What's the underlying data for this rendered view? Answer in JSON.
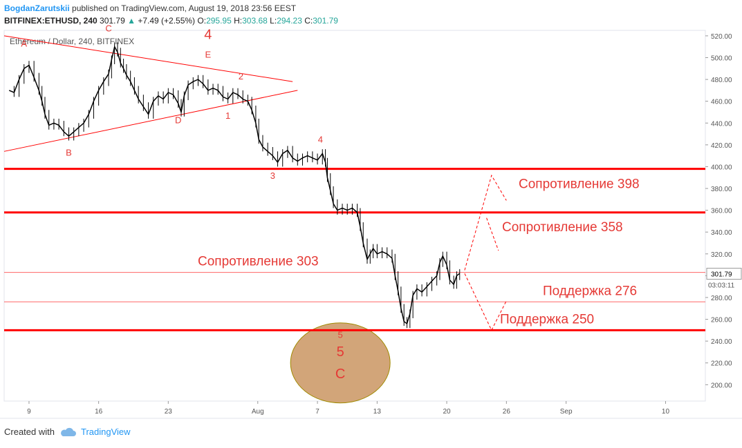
{
  "header": {
    "author": "BogdanZarutskii",
    "published": "published on TradingView.com, August 19, 2018 23:56 EEST",
    "symbol": "BITFINEX:ETHUSD, 240",
    "last": "301.79",
    "change": "+7.49 (+2.55%)",
    "open_label": "O:",
    "open": "295.95",
    "high_label": "H:",
    "high": "303.68",
    "low_label": "L:",
    "low": "294.23",
    "close_label": "C:",
    "close": "301.79"
  },
  "footer": {
    "created_with": "Created with",
    "brand": "TradingView"
  },
  "chart_data": {
    "type": "candlestick",
    "title": "Ethereum / Dollar, 240, BITFINEX",
    "ylim": [
      185,
      525
    ],
    "y_ticks": [
      200,
      220,
      240,
      260,
      280,
      300,
      320,
      340,
      360,
      380,
      400,
      420,
      440,
      460,
      480,
      500,
      520
    ],
    "x_ticks": [
      "9",
      "16",
      "23",
      "Aug",
      "7",
      "13",
      "20",
      "26",
      "Sep",
      "10"
    ],
    "x_tick_days": [
      9,
      16,
      23,
      32,
      38,
      44,
      51,
      57,
      63,
      73
    ],
    "xlim_days": [
      6.5,
      77
    ],
    "last_price": "301.79",
    "last_countdown": "03:03:11",
    "colors": {
      "price": "#000000",
      "levels": "#ff0000",
      "annotation": "#e53935",
      "circle_fill": "#d2a579",
      "circle_stroke": "#a08a00",
      "price_tag": "#ffffff"
    },
    "series": [
      {
        "values": [
          [
            7.0,
            470
          ],
          [
            7.5,
            468
          ],
          [
            8.0,
            480
          ],
          [
            8.5,
            490
          ],
          [
            9.0,
            493
          ],
          [
            9.5,
            482
          ],
          [
            10.0,
            470
          ],
          [
            10.3,
            460
          ],
          [
            10.6,
            448
          ],
          [
            11.0,
            438
          ],
          [
            11.5,
            440
          ],
          [
            12.0,
            438
          ],
          [
            12.5,
            432
          ],
          [
            13.0,
            428
          ],
          [
            13.5,
            432
          ],
          [
            14.0,
            436
          ],
          [
            14.5,
            440
          ],
          [
            15.0,
            448
          ],
          [
            15.5,
            460
          ],
          [
            16.0,
            470
          ],
          [
            16.5,
            478
          ],
          [
            17.0,
            485
          ],
          [
            17.3,
            498
          ],
          [
            17.6,
            510
          ],
          [
            17.9,
            505
          ],
          [
            18.2,
            495
          ],
          [
            18.5,
            490
          ],
          [
            18.8,
            484
          ],
          [
            19.2,
            478
          ],
          [
            19.6,
            470
          ],
          [
            20.0,
            462
          ],
          [
            20.5,
            455
          ],
          [
            21.0,
            448
          ],
          [
            21.5,
            460
          ],
          [
            22.0,
            465
          ],
          [
            22.5,
            462
          ],
          [
            23.0,
            468
          ],
          [
            23.5,
            466
          ],
          [
            24.0,
            458
          ],
          [
            24.3,
            450
          ],
          [
            24.6,
            465
          ],
          [
            25.0,
            475
          ],
          [
            25.5,
            478
          ],
          [
            26.0,
            480
          ],
          [
            26.5,
            476
          ],
          [
            27.0,
            470
          ],
          [
            27.5,
            472
          ],
          [
            28.0,
            470
          ],
          [
            28.5,
            464
          ],
          [
            29.0,
            462
          ],
          [
            29.5,
            468
          ],
          [
            30.0,
            466
          ],
          [
            30.5,
            462
          ],
          [
            31.0,
            460
          ],
          [
            31.4,
            452
          ],
          [
            31.8,
            440
          ],
          [
            32.1,
            425
          ],
          [
            32.5,
            418
          ],
          [
            33.0,
            414
          ],
          [
            33.5,
            410
          ],
          [
            34.0,
            404
          ],
          [
            34.5,
            412
          ],
          [
            35.0,
            415
          ],
          [
            35.5,
            408
          ],
          [
            36.0,
            405
          ],
          [
            36.5,
            408
          ],
          [
            37.0,
            410
          ],
          [
            37.5,
            408
          ],
          [
            38.0,
            406
          ],
          [
            38.5,
            412
          ],
          [
            38.8,
            404
          ],
          [
            39.0,
            390
          ],
          [
            39.3,
            378
          ],
          [
            39.6,
            366
          ],
          [
            40.0,
            360
          ],
          [
            40.5,
            362
          ],
          [
            41.0,
            360
          ],
          [
            41.5,
            362
          ],
          [
            42.0,
            358
          ],
          [
            42.3,
            345
          ],
          [
            42.6,
            330
          ],
          [
            43.0,
            315
          ],
          [
            43.3,
            320
          ],
          [
            43.6,
            325
          ],
          [
            44.0,
            320
          ],
          [
            44.5,
            322
          ],
          [
            45.0,
            320
          ],
          [
            45.5,
            316
          ],
          [
            45.8,
            300
          ],
          [
            46.1,
            286
          ],
          [
            46.4,
            270
          ],
          [
            46.7,
            258
          ],
          [
            47.0,
            256
          ],
          [
            47.3,
            265
          ],
          [
            47.6,
            282
          ],
          [
            48.0,
            288
          ],
          [
            48.5,
            285
          ],
          [
            49.0,
            290
          ],
          [
            49.5,
            295
          ],
          [
            50.0,
            300
          ],
          [
            50.3,
            312
          ],
          [
            50.6,
            318
          ],
          [
            51.0,
            310
          ],
          [
            51.3,
            296
          ],
          [
            51.7,
            292
          ],
          [
            52.0,
            300
          ],
          [
            52.3,
            302
          ]
        ]
      }
    ],
    "levels": [
      {
        "price": 398,
        "label": "Сопротивление 398",
        "style": "thick"
      },
      {
        "price": 358,
        "label": "Сопротивление 358",
        "style": "thick"
      },
      {
        "price": 303,
        "label": "Сопротивление 303",
        "style": "thin"
      },
      {
        "price": 276,
        "label": "Поддержка 276",
        "style": "thin"
      },
      {
        "price": 250,
        "label": "Поддержка 250",
        "style": "thick"
      }
    ],
    "trendlines": [
      {
        "from": [
          6.5,
          520
        ],
        "to": [
          35.5,
          478
        ]
      },
      {
        "from": [
          6.5,
          414
        ],
        "to": [
          36.0,
          470
        ]
      }
    ],
    "wave_labels": [
      {
        "text": "A",
        "day": 8.5,
        "price": 510,
        "size": "small"
      },
      {
        "text": "B",
        "day": 13.0,
        "price": 410,
        "size": "small"
      },
      {
        "text": "C",
        "day": 17.0,
        "price": 524,
        "size": "small"
      },
      {
        "text": "D",
        "day": 24.0,
        "price": 440,
        "size": "small"
      },
      {
        "text": "E",
        "day": 27.0,
        "price": 500,
        "size": "small"
      },
      {
        "text": "4",
        "day": 27.0,
        "price": 517,
        "size": "big"
      },
      {
        "text": "1",
        "day": 29.0,
        "price": 444,
        "size": "small"
      },
      {
        "text": "2",
        "day": 30.3,
        "price": 480,
        "size": "small"
      },
      {
        "text": "3",
        "day": 33.5,
        "price": 389,
        "size": "small"
      },
      {
        "text": "4",
        "day": 38.3,
        "price": 422,
        "size": "small"
      },
      {
        "text": "5",
        "day": 40.3,
        "price": 243,
        "size": "small"
      },
      {
        "text": "5",
        "day": 40.3,
        "price": 226,
        "size": "big"
      },
      {
        "text": "C",
        "day": 40.3,
        "price": 206,
        "size": "big"
      }
    ],
    "projection": [
      [
        52.8,
        305
      ],
      [
        55.5,
        392
      ],
      [
        57.0,
        369
      ]
    ],
    "projection2": [
      [
        55.0,
        353
      ],
      [
        56.2,
        323
      ]
    ],
    "projection_down": [
      [
        52.8,
        302
      ],
      [
        55.5,
        250
      ],
      [
        57.0,
        277
      ]
    ],
    "target_circle": {
      "day": 40.3,
      "price": 220
    }
  }
}
